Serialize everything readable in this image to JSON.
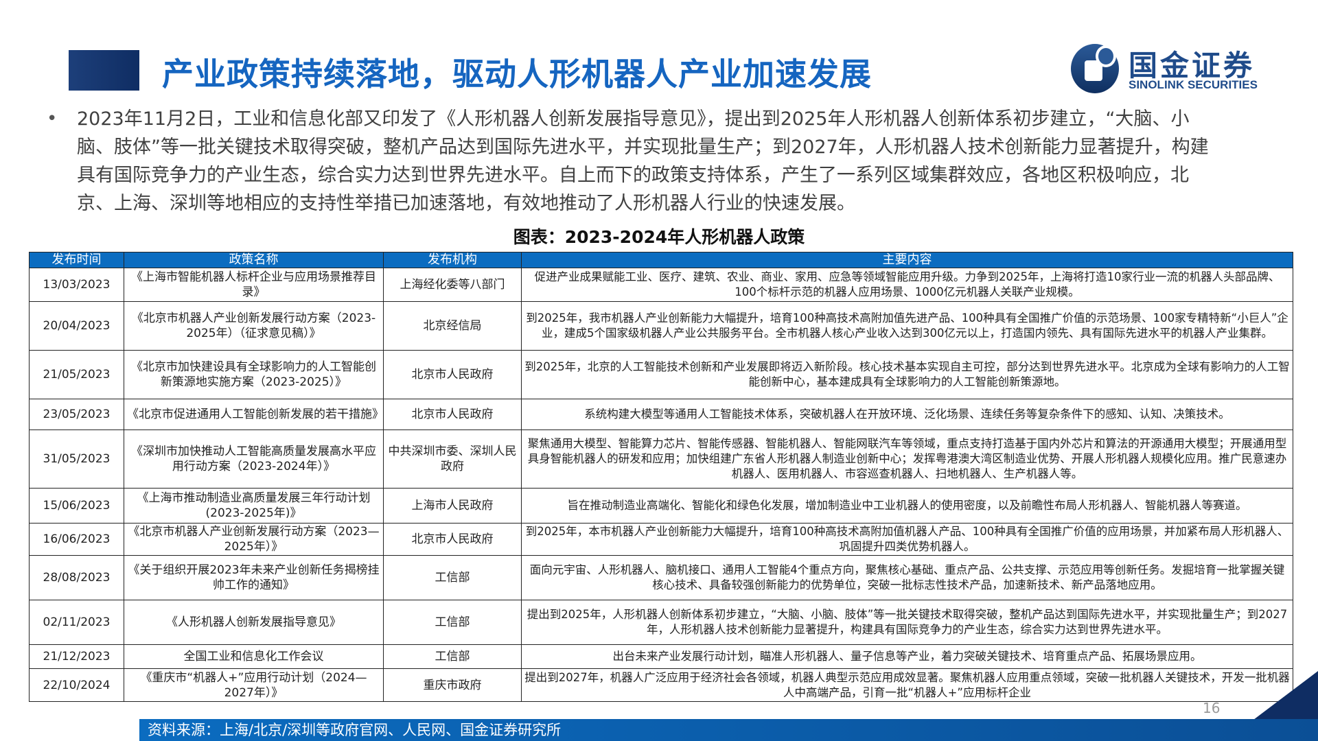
{
  "header": {
    "title": "产业政策持续落地，驱动人形机器人产业加速发展",
    "logo_cn": "国金证券",
    "logo_en": "SINOLINK SECURITIES"
  },
  "bullet": {
    "marker": "•",
    "text": "2023年11月2日，工业和信息化部又印发了《人形机器人创新发展指导意见》，提出到2025年人形机器人创新体系初步建立，“大脑、小脑、肢体”等一批关键技术取得突破，整机产品达到国际先进水平，并实现批量生产；到2027年，人形机器人技术创新能力显著提升，构建具有国际竞争力的产业生态，综合实力达到世界先进水平。自上而下的政策支持体系，产生了一系列区域集群效应，各地区积极响应，北京、上海、深圳等地相应的支持性举措已加速落地，有效地推动了人形机器人行业的快速发展。"
  },
  "table": {
    "caption": "图表：2023-2024年人形机器人政策",
    "headers": [
      "发布时间",
      "政策名称",
      "发布机构",
      "主要内容"
    ],
    "rows": [
      {
        "date": "13/03/2023",
        "name": "《上海市智能机器人标杆企业与应用场景推荐目录》",
        "org": "上海经化委等八部门",
        "content": "促进产业成果赋能工业、医疗、建筑、农业、商业、家用、应急等领域智能应用升级。力争到2025年，上海将打造10家行业一流的机器人头部品牌、100个标杆示范的机器人应用场景、1000亿元机器人关联产业规模。"
      },
      {
        "date": "20/04/2023",
        "name": "《北京市机器人产业创新发展行动方案（2023-2025年）（征求意见稿）》",
        "org": "北京经信局",
        "content": "到2025年，我市机器人产业创新能力大幅提升，培育100种高技术高附加值先进产品、100种具有全国推广价值的示范场景、100家专精特新“小巨人”企业，建成5个国家级机器人产业公共服务平台。全市机器人核心产业收入达到300亿元以上，打造国内领先、具有国际先进水平的机器人产业集群。"
      },
      {
        "date": "21/05/2023",
        "name": "《北京市加快建设具有全球影响力的人工智能创新策源地实施方案（2023-2025）》",
        "org": "北京市人民政府",
        "content": "到2025年，北京的人工智能技术创新和产业发展即将迈入新阶段。核心技术基本实现自主可控，部分达到世界先进水平。北京成为全球有影响力的人工智能创新中心，基本建成具有全球影响力的人工智能创新策源地。"
      },
      {
        "date": "23/05/2023",
        "name": "《北京市促进通用人工智能创新发展的若干措施》",
        "org": "北京市人民政府",
        "content": "系统构建大模型等通用人工智能技术体系，突破机器人在开放环境、泛化场景、连续任务等复杂条件下的感知、认知、决策技术。"
      },
      {
        "date": "31/05/2023",
        "name": "《深圳市加快推动人工智能高质量发展高水平应用行动方案（2023-2024年）》",
        "org": "中共深圳市委、深圳人民政府",
        "content": "聚焦通用大模型、智能算力芯片、智能传感器、智能机器人、智能网联汽车等领域，重点支持打造基于国内外芯片和算法的开源通用大模型；开展通用型具身智能机器人的研发和应用；加快组建广东省人形机器人制造业创新中心；发挥粤港澳大湾区制造业优势、开展人形机器人规模化应用。推广民意速办机器人、医用机器人、市容巡查机器人、扫地机器人、生产机器人等。"
      },
      {
        "date": "15/06/2023",
        "name": "《上海市推动制造业高质量发展三年行动计划(2023-2025年)》",
        "org": "上海市人民政府",
        "content": "旨在推动制造业高端化、智能化和绿色化发展，增加制造业中工业机器人的使用密度，以及前瞻性布局人形机器人、智能机器人等赛道。"
      },
      {
        "date": "16/06/2023",
        "name": "《北京市机器人产业创新发展行动方案（2023—2025年）》",
        "org": "北京市人民政府",
        "content": "到2025年，本市机器人产业创新能力大幅提升，培育100种高技术高附加值机器人产品、100种具有全国推广价值的应用场景，并加紧布局人形机器人、巩固提升四类优势机器人。"
      },
      {
        "date": "28/08/2023",
        "name": "《关于组织开展2023年未来产业创新任务揭榜挂帅工作的通知》",
        "org": "工信部",
        "content": "面向元宇宙、人形机器人、脑机接口、通用人工智能4个重点方向，聚焦核心基础、重点产品、公共支撑、示范应用等创新任务。发掘培育一批掌握关键核心技术、具备较强创新能力的优势单位，突破一批标志性技术产品，加速新技术、新产品落地应用。"
      },
      {
        "date": "02/11/2023",
        "name": "《人形机器人创新发展指导意见》",
        "org": "工信部",
        "content": "提出到2025年，人形机器人创新体系初步建立，“大脑、小脑、肢体”等一批关键技术取得突破，整机产品达到国际先进水平，并实现批量生产；到2027年，人形机器人技术创新能力显著提升，构建具有国际竞争力的产业生态，综合实力达到世界先进水平。"
      },
      {
        "date": "21/12/2023",
        "name": "全国工业和信息化工作会议",
        "org": "工信部",
        "content": "出台未来产业发展行动计划，瞄准人形机器人、量子信息等产业，着力突破关键技术、培育重点产品、拓展场景应用。"
      },
      {
        "date": "22/10/2024",
        "name": "《重庆市“机器人+”应用行动计划（2024—2027年）》",
        "org": "重庆市政府",
        "content": "提出到2027年，机器人广泛应用于经济社会各领域，机器人典型示范应用成效显著。聚焦机器人应用重点领域，突破一批机器人关键技术，开发一批机器人中高端产品，引育一批“机器人+”应用标杆企业"
      }
    ]
  },
  "footer": {
    "source": "资料来源：上海/北京/深圳等政府官网、人民网、国金证券研究所",
    "page_number": "16"
  },
  "colors": {
    "title": "#1565c0",
    "table_header": "#0b6cc0",
    "brand_dark": "#0f2d63"
  }
}
